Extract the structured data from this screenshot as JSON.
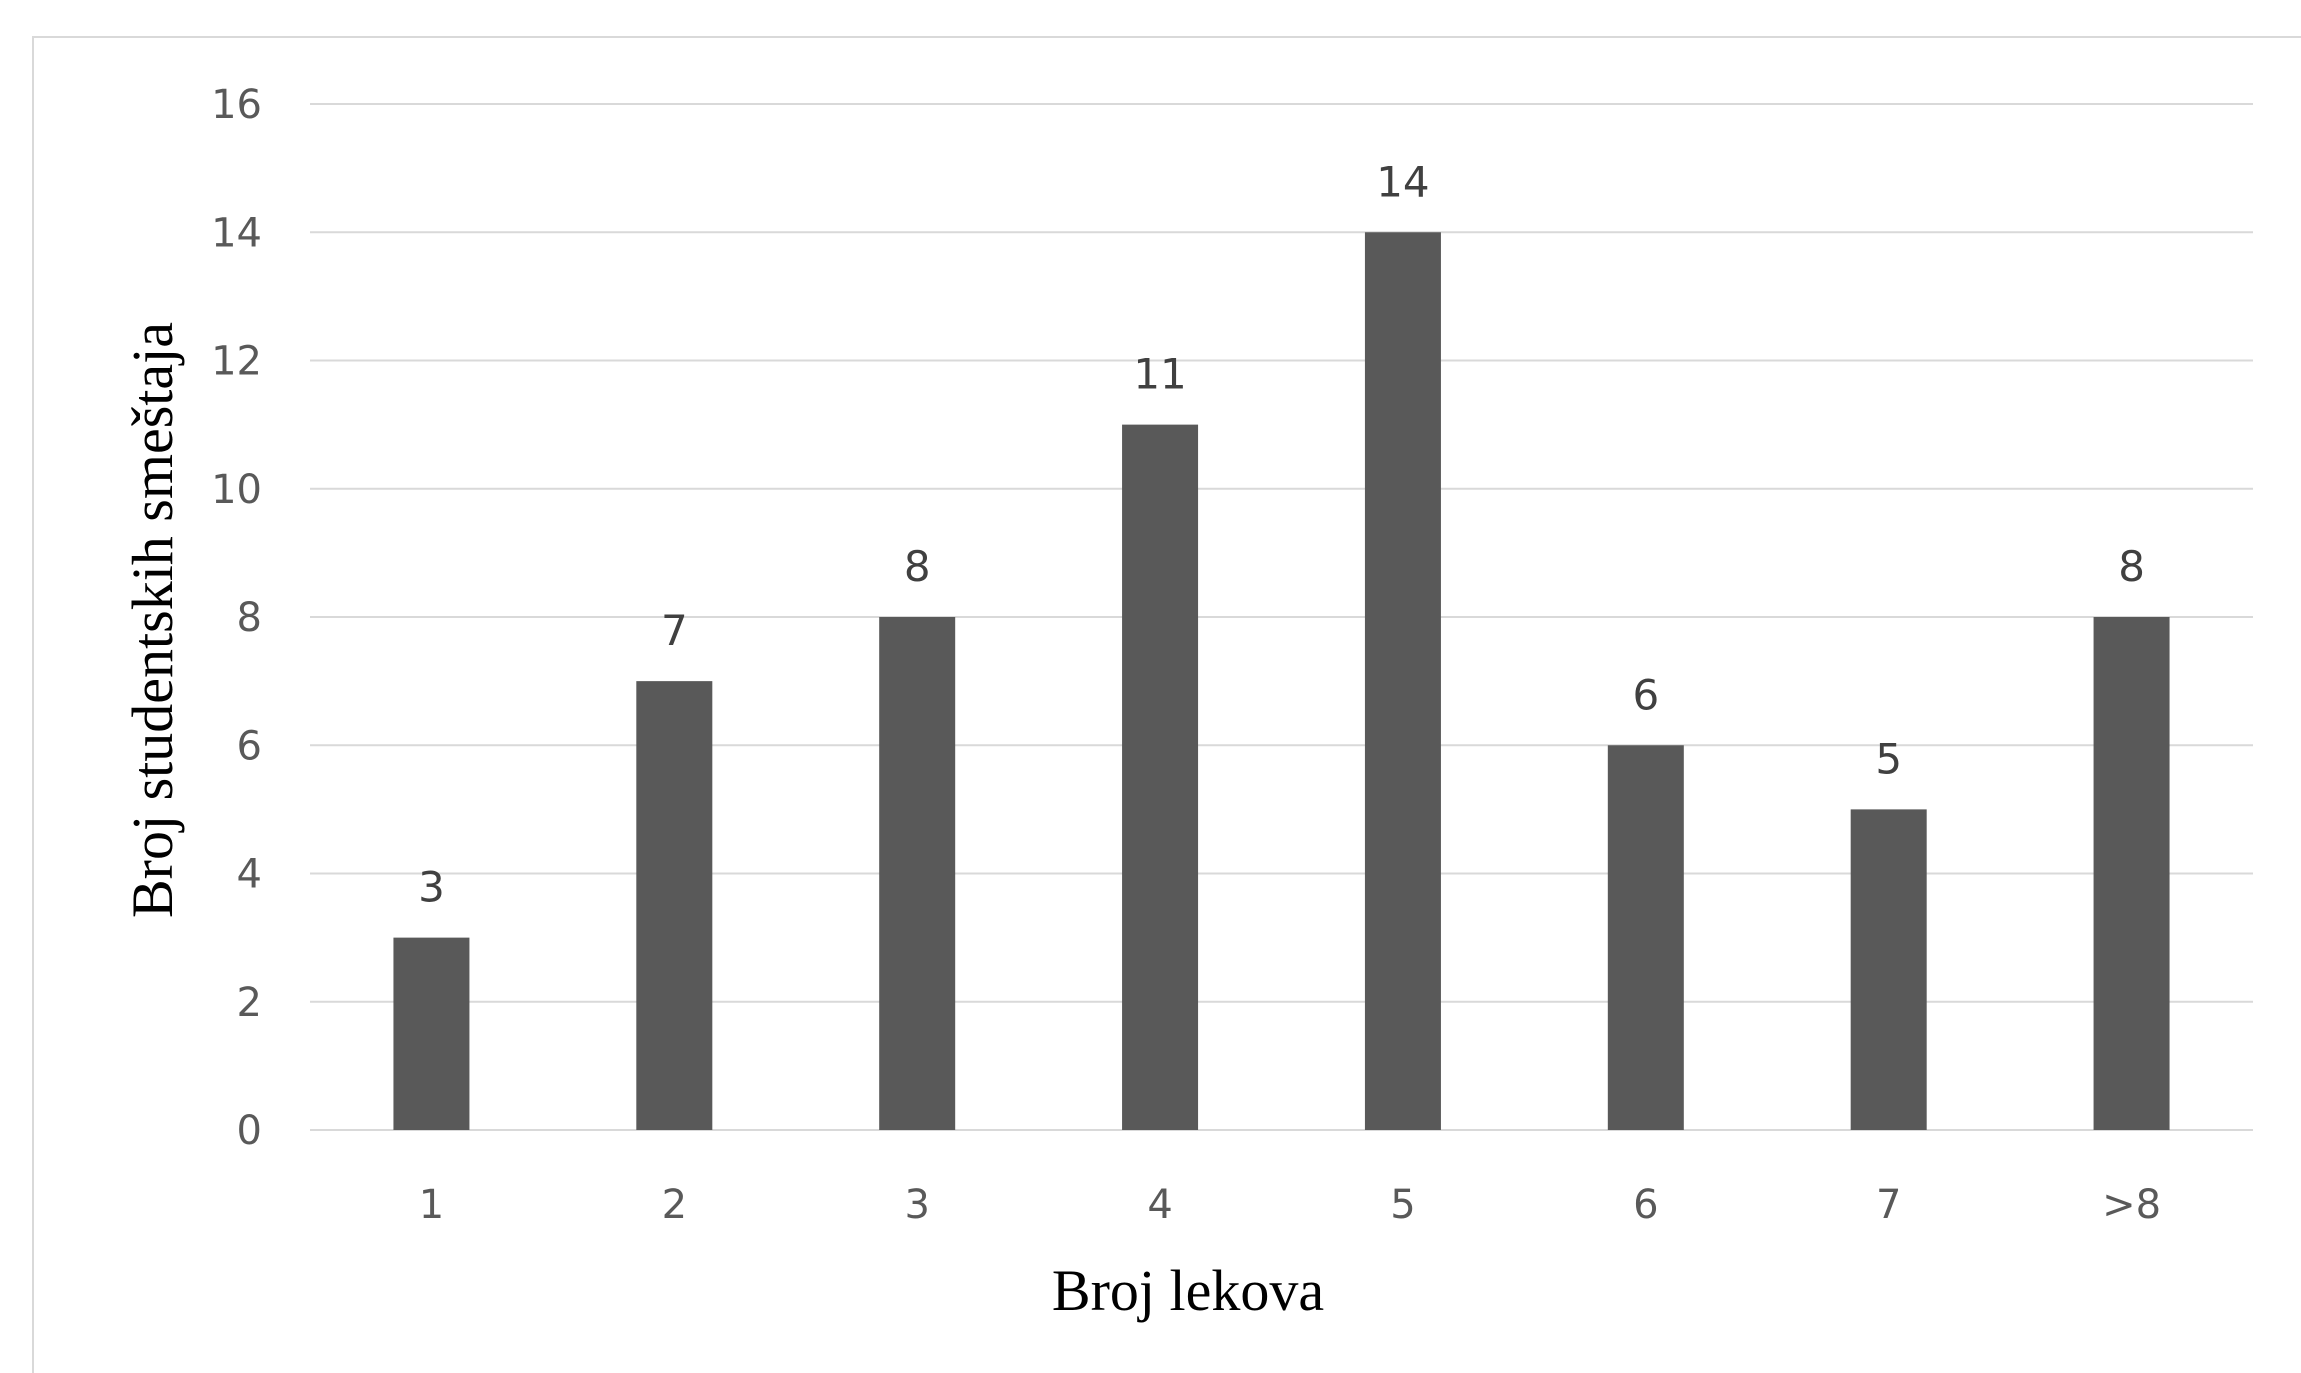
{
  "chart_data": {
    "type": "bar",
    "categories": [
      "1",
      "2",
      "3",
      "4",
      "5",
      "6",
      "7",
      ">8"
    ],
    "values": [
      3,
      7,
      8,
      11,
      14,
      6,
      5,
      8
    ],
    "data_labels": [
      "3",
      "7",
      "8",
      "11",
      "14",
      "6",
      "5",
      "8"
    ],
    "xlabel": "Broj lekova",
    "ylabel": "Broj studentskih smeštaja",
    "ylim": [
      0,
      16
    ],
    "yticks": [
      0,
      2,
      4,
      6,
      8,
      10,
      12,
      14,
      16
    ],
    "grid": true,
    "legend": "none",
    "bar_color": "#595959",
    "gridline_color": "#d9d9d9"
  }
}
